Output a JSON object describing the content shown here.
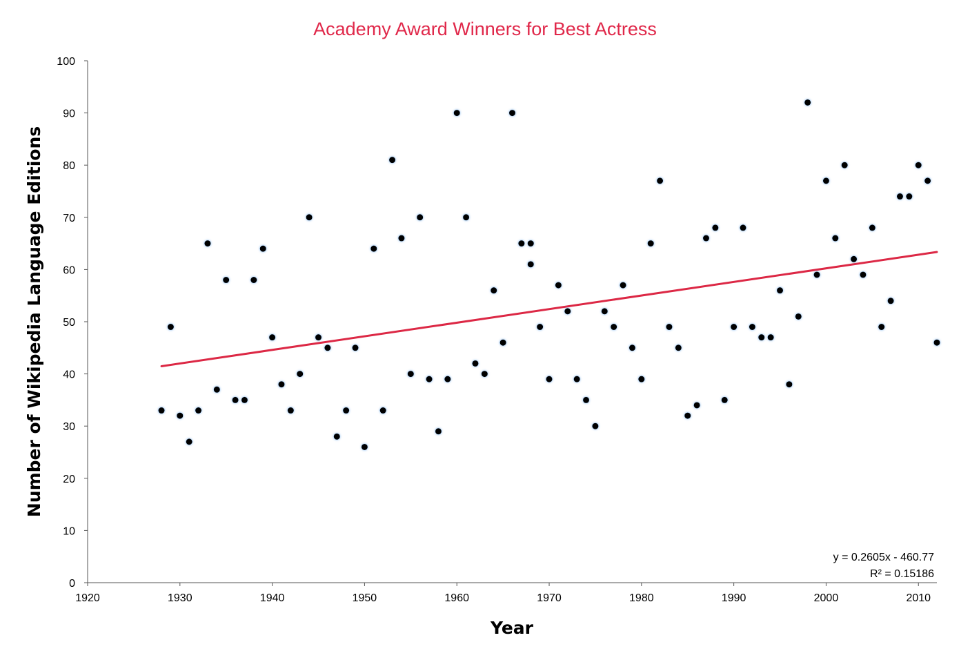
{
  "chart_data": {
    "type": "scatter",
    "title": "Academy Award Winners for Best Actress",
    "xlabel": "Year",
    "ylabel": "Number of Wikipedia Language Editions",
    "xlim": [
      1920,
      2012
    ],
    "ylim": [
      0,
      100
    ],
    "x_ticks": [
      1920,
      1930,
      1940,
      1950,
      1960,
      1970,
      1980,
      1990,
      2000,
      2010
    ],
    "y_ticks": [
      0,
      10,
      20,
      30,
      40,
      50,
      60,
      70,
      80,
      90,
      100
    ],
    "grid": false,
    "legend": "none",
    "series": [
      {
        "points": [
          [
            1928,
            33
          ],
          [
            1929,
            49
          ],
          [
            1930,
            32
          ],
          [
            1931,
            27
          ],
          [
            1932,
            33
          ],
          [
            1933,
            65
          ],
          [
            1934,
            37
          ],
          [
            1935,
            58
          ],
          [
            1936,
            35
          ],
          [
            1937,
            35
          ],
          [
            1938,
            58
          ],
          [
            1939,
            64
          ],
          [
            1940,
            47
          ],
          [
            1941,
            38
          ],
          [
            1942,
            33
          ],
          [
            1943,
            40
          ],
          [
            1944,
            70
          ],
          [
            1945,
            47
          ],
          [
            1946,
            45
          ],
          [
            1947,
            28
          ],
          [
            1948,
            33
          ],
          [
            1949,
            45
          ],
          [
            1950,
            26
          ],
          [
            1951,
            64
          ],
          [
            1952,
            33
          ],
          [
            1953,
            81
          ],
          [
            1954,
            66
          ],
          [
            1955,
            40
          ],
          [
            1956,
            70
          ],
          [
            1957,
            39
          ],
          [
            1958,
            29
          ],
          [
            1959,
            39
          ],
          [
            1960,
            90
          ],
          [
            1961,
            70
          ],
          [
            1962,
            42
          ],
          [
            1963,
            40
          ],
          [
            1964,
            56
          ],
          [
            1965,
            46
          ],
          [
            1966,
            90
          ],
          [
            1967,
            65
          ],
          [
            1968,
            65
          ],
          [
            1968,
            61
          ],
          [
            1969,
            49
          ],
          [
            1970,
            39
          ],
          [
            1971,
            57
          ],
          [
            1972,
            52
          ],
          [
            1973,
            39
          ],
          [
            1974,
            35
          ],
          [
            1975,
            30
          ],
          [
            1976,
            52
          ],
          [
            1977,
            49
          ],
          [
            1978,
            57
          ],
          [
            1979,
            45
          ],
          [
            1980,
            39
          ],
          [
            1981,
            65
          ],
          [
            1982,
            77
          ],
          [
            1983,
            49
          ],
          [
            1984,
            45
          ],
          [
            1985,
            32
          ],
          [
            1986,
            34
          ],
          [
            1987,
            66
          ],
          [
            1988,
            68
          ],
          [
            1989,
            35
          ],
          [
            1990,
            49
          ],
          [
            1991,
            68
          ],
          [
            1992,
            49
          ],
          [
            1993,
            47
          ],
          [
            1994,
            47
          ],
          [
            1995,
            56
          ],
          [
            1996,
            38
          ],
          [
            1997,
            51
          ],
          [
            1998,
            92
          ],
          [
            1999,
            59
          ],
          [
            2000,
            77
          ],
          [
            2001,
            66
          ],
          [
            2002,
            80
          ],
          [
            2003,
            62
          ],
          [
            2004,
            59
          ],
          [
            2005,
            68
          ],
          [
            2006,
            49
          ],
          [
            2007,
            54
          ],
          [
            2008,
            74
          ],
          [
            2009,
            74
          ],
          [
            2010,
            80
          ],
          [
            2011,
            77
          ],
          [
            2012,
            46
          ]
        ]
      }
    ],
    "trendline": {
      "slope": 0.2605,
      "intercept": -460.77,
      "x_range": [
        1928,
        2012
      ],
      "equation_label": "y = 0.2605x - 460.77",
      "r2_label": "R² = 0.15186"
    },
    "colors": {
      "title": "#e0284a",
      "trendline": "#dc2845",
      "marker_fill": "#000000",
      "marker_glow": "#6aa8e8"
    }
  }
}
